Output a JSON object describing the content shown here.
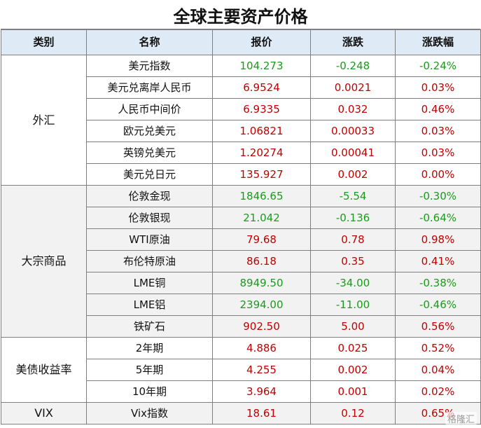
{
  "title": "全球主要资产价格",
  "headers": [
    "类别",
    "名称",
    "报价",
    "涨跌",
    "涨跌幅"
  ],
  "groups": [
    {
      "category": "外汇",
      "rows": [
        {
          "name": "美元指数",
          "price": "104.273",
          "change": "-0.248",
          "pct": "-0.24%",
          "dir": "down"
        },
        {
          "name": "美元兑离岸人民币",
          "price": "6.9524",
          "change": "0.0021",
          "pct": "0.03%",
          "dir": "up"
        },
        {
          "name": "人民币中间价",
          "price": "6.9335",
          "change": "0.032",
          "pct": "0.46%",
          "dir": "up"
        },
        {
          "name": "欧元兑美元",
          "price": "1.06821",
          "change": "0.00033",
          "pct": "0.03%",
          "dir": "up"
        },
        {
          "name": "英镑兑美元",
          "price": "1.20274",
          "change": "0.00041",
          "pct": "0.03%",
          "dir": "up"
        },
        {
          "name": "美元兑日元",
          "price": "135.927",
          "change": "0.002",
          "pct": "0.00%",
          "dir": "up"
        }
      ]
    },
    {
      "category": "大宗商品",
      "rows": [
        {
          "name": "伦敦金现",
          "price": "1846.65",
          "change": "-5.54",
          "pct": "-0.30%",
          "dir": "down"
        },
        {
          "name": "伦敦银现",
          "price": "21.042",
          "change": "-0.136",
          "pct": "-0.64%",
          "dir": "down"
        },
        {
          "name": "WTI原油",
          "price": "79.68",
          "change": "0.78",
          "pct": "0.98%",
          "dir": "up"
        },
        {
          "name": "布伦特原油",
          "price": "86.18",
          "change": "0.35",
          "pct": "0.41%",
          "dir": "up"
        },
        {
          "name": "LME铜",
          "price": "8949.50",
          "change": "-34.00",
          "pct": "-0.38%",
          "dir": "down"
        },
        {
          "name": "LME铝",
          "price": "2394.00",
          "change": "-11.00",
          "pct": "-0.46%",
          "dir": "down"
        },
        {
          "name": "铁矿石",
          "price": "902.50",
          "change": "5.00",
          "pct": "0.56%",
          "dir": "up"
        }
      ]
    },
    {
      "category": "美债收益率",
      "rows": [
        {
          "name": "2年期",
          "price": "4.886",
          "change": "0.025",
          "pct": "0.52%",
          "dir": "up"
        },
        {
          "name": "5年期",
          "price": "4.255",
          "change": "0.002",
          "pct": "0.04%",
          "dir": "up"
        },
        {
          "name": "10年期",
          "price": "3.964",
          "change": "0.001",
          "pct": "0.02%",
          "dir": "up"
        }
      ]
    },
    {
      "category": "VIX",
      "rows": [
        {
          "name": "Vix指数",
          "price": "18.61",
          "change": "0.12",
          "pct": "0.65%",
          "dir": "up"
        }
      ]
    }
  ],
  "watermark": "格隆汇"
}
